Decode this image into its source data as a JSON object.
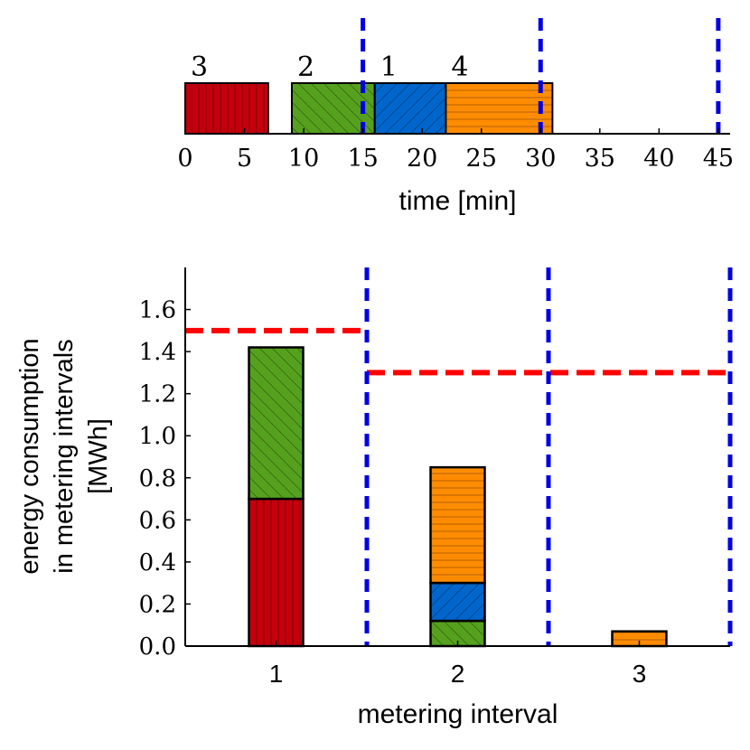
{
  "chart_data": [
    {
      "type": "gantt",
      "xlabel": "time [min]",
      "xlim": [
        0,
        46
      ],
      "x_ticks": [
        0,
        5,
        10,
        15,
        20,
        25,
        30,
        35,
        40,
        45
      ],
      "x_tick_labels": [
        "0",
        "5",
        "10",
        "15",
        "20",
        "25",
        "30",
        "35",
        "40",
        "45"
      ],
      "interval_boundaries": [
        15,
        30,
        45
      ],
      "tasks": [
        {
          "label": "3",
          "start": 0,
          "end": 7,
          "job": 3
        },
        {
          "label": "2",
          "start": 9,
          "end": 16,
          "job": 2
        },
        {
          "label": "1",
          "start": 16,
          "end": 22,
          "job": 1
        },
        {
          "label": "4",
          "start": 22,
          "end": 31,
          "job": 4
        }
      ]
    },
    {
      "type": "bar",
      "stacked": true,
      "xlabel": "metering interval",
      "ylabel_lines": [
        "energy consumption",
        "in metering intervals",
        "[MWh]"
      ],
      "categories": [
        "1",
        "2",
        "3"
      ],
      "ylim": [
        0,
        1.8
      ],
      "y_ticks": [
        0.0,
        0.2,
        0.4,
        0.6,
        0.8,
        1.0,
        1.2,
        1.4,
        1.6
      ],
      "y_tick_labels": [
        "0.0",
        "0.2",
        "0.4",
        "0.6",
        "0.8",
        "1.0",
        "1.2",
        "1.4",
        "1.6"
      ],
      "series": [
        {
          "name": "job 3",
          "job": 3,
          "values": [
            0.7,
            0.0,
            0.0
          ]
        },
        {
          "name": "job 2",
          "job": 2,
          "values": [
            0.72,
            0.12,
            0.0
          ]
        },
        {
          "name": "job 1",
          "job": 1,
          "values": [
            0.0,
            0.18,
            0.0
          ]
        },
        {
          "name": "job 4",
          "job": 4,
          "values": [
            0.0,
            0.55,
            0.07
          ]
        }
      ],
      "limits": [
        {
          "from_category": 0.5,
          "to_category": 1.5,
          "value": 1.5
        },
        {
          "from_category": 1.5,
          "to_category": 3.5,
          "value": 1.3
        }
      ],
      "interval_boundaries": [
        1.5,
        2.5,
        3.5
      ]
    }
  ],
  "colors": {
    "job_1": "#0066cc",
    "job_2": "#55a11e",
    "job_3": "#c4000d",
    "job_4": "#ff8c00",
    "interval_line": "#0000e6",
    "limit_line": "#ff0000",
    "axis": "#000000"
  }
}
